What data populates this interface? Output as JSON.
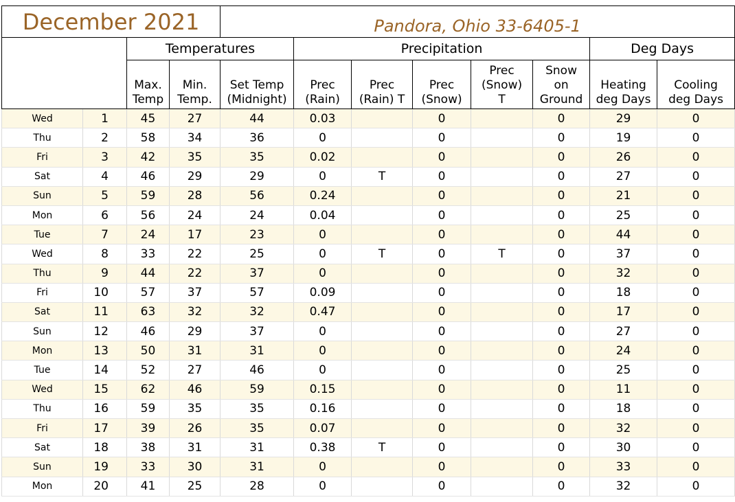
{
  "title": {
    "month": "December 2021",
    "location": "Pandora, Ohio 33-6405-1"
  },
  "groups": {
    "temperatures": "Temperatures",
    "precipitation": "Precipitation",
    "deg_days": "Deg Days"
  },
  "columns": [
    [
      "Max.",
      "Temp"
    ],
    [
      "Min.",
      "Temp."
    ],
    [
      "Set Temp",
      "(Midnight)"
    ],
    [
      "Prec",
      "(Rain)"
    ],
    [
      "Prec",
      "(Rain) T"
    ],
    [
      "Prec",
      "(Snow)"
    ],
    [
      "Prec",
      "(Snow)",
      "T"
    ],
    [
      "Snow",
      "on",
      "Ground"
    ],
    [
      "Heating",
      "deg Days"
    ],
    [
      "Cooling",
      "deg Days"
    ]
  ],
  "rows": [
    [
      "Wed",
      "1",
      "45",
      "27",
      "44",
      "0.03",
      "",
      "0",
      "",
      "0",
      "29",
      "0"
    ],
    [
      "Thu",
      "2",
      "58",
      "34",
      "36",
      "0",
      "",
      "0",
      "",
      "0",
      "19",
      "0"
    ],
    [
      "Fri",
      "3",
      "42",
      "35",
      "35",
      "0.02",
      "",
      "0",
      "",
      "0",
      "26",
      "0"
    ],
    [
      "Sat",
      "4",
      "46",
      "29",
      "29",
      "0",
      "T",
      "0",
      "",
      "0",
      "27",
      "0"
    ],
    [
      "Sun",
      "5",
      "59",
      "28",
      "56",
      "0.24",
      "",
      "0",
      "",
      "0",
      "21",
      "0"
    ],
    [
      "Mon",
      "6",
      "56",
      "24",
      "24",
      "0.04",
      "",
      "0",
      "",
      "0",
      "25",
      "0"
    ],
    [
      "Tue",
      "7",
      "24",
      "17",
      "23",
      "0",
      "",
      "0",
      "",
      "0",
      "44",
      "0"
    ],
    [
      "Wed",
      "8",
      "33",
      "22",
      "25",
      "0",
      "T",
      "0",
      "T",
      "0",
      "37",
      "0"
    ],
    [
      "Thu",
      "9",
      "44",
      "22",
      "37",
      "0",
      "",
      "0",
      "",
      "0",
      "32",
      "0"
    ],
    [
      "Fri",
      "10",
      "57",
      "37",
      "57",
      "0.09",
      "",
      "0",
      "",
      "0",
      "18",
      "0"
    ],
    [
      "Sat",
      "11",
      "63",
      "32",
      "32",
      "0.47",
      "",
      "0",
      "",
      "0",
      "17",
      "0"
    ],
    [
      "Sun",
      "12",
      "46",
      "29",
      "37",
      "0",
      "",
      "0",
      "",
      "0",
      "27",
      "0"
    ],
    [
      "Mon",
      "13",
      "50",
      "31",
      "31",
      "0",
      "",
      "0",
      "",
      "0",
      "24",
      "0"
    ],
    [
      "Tue",
      "14",
      "52",
      "27",
      "46",
      "0",
      "",
      "0",
      "",
      "0",
      "25",
      "0"
    ],
    [
      "Wed",
      "15",
      "62",
      "46",
      "59",
      "0.15",
      "",
      "0",
      "",
      "0",
      "11",
      "0"
    ],
    [
      "Thu",
      "16",
      "59",
      "35",
      "35",
      "0.16",
      "",
      "0",
      "",
      "0",
      "18",
      "0"
    ],
    [
      "Fri",
      "17",
      "39",
      "26",
      "35",
      "0.07",
      "",
      "0",
      "",
      "0",
      "32",
      "0"
    ],
    [
      "Sat",
      "18",
      "38",
      "31",
      "31",
      "0.38",
      "T",
      "0",
      "",
      "0",
      "30",
      "0"
    ],
    [
      "Sun",
      "19",
      "33",
      "30",
      "31",
      "0",
      "",
      "0",
      "",
      "0",
      "33",
      "0"
    ],
    [
      "Mon",
      "20",
      "41",
      "25",
      "28",
      "0",
      "",
      "0",
      "",
      "0",
      "32",
      "0"
    ]
  ],
  "colors": {
    "title_text": "#9a6427",
    "band_fill": "#fdf8e4",
    "grid_line": "#d9d9d9"
  }
}
